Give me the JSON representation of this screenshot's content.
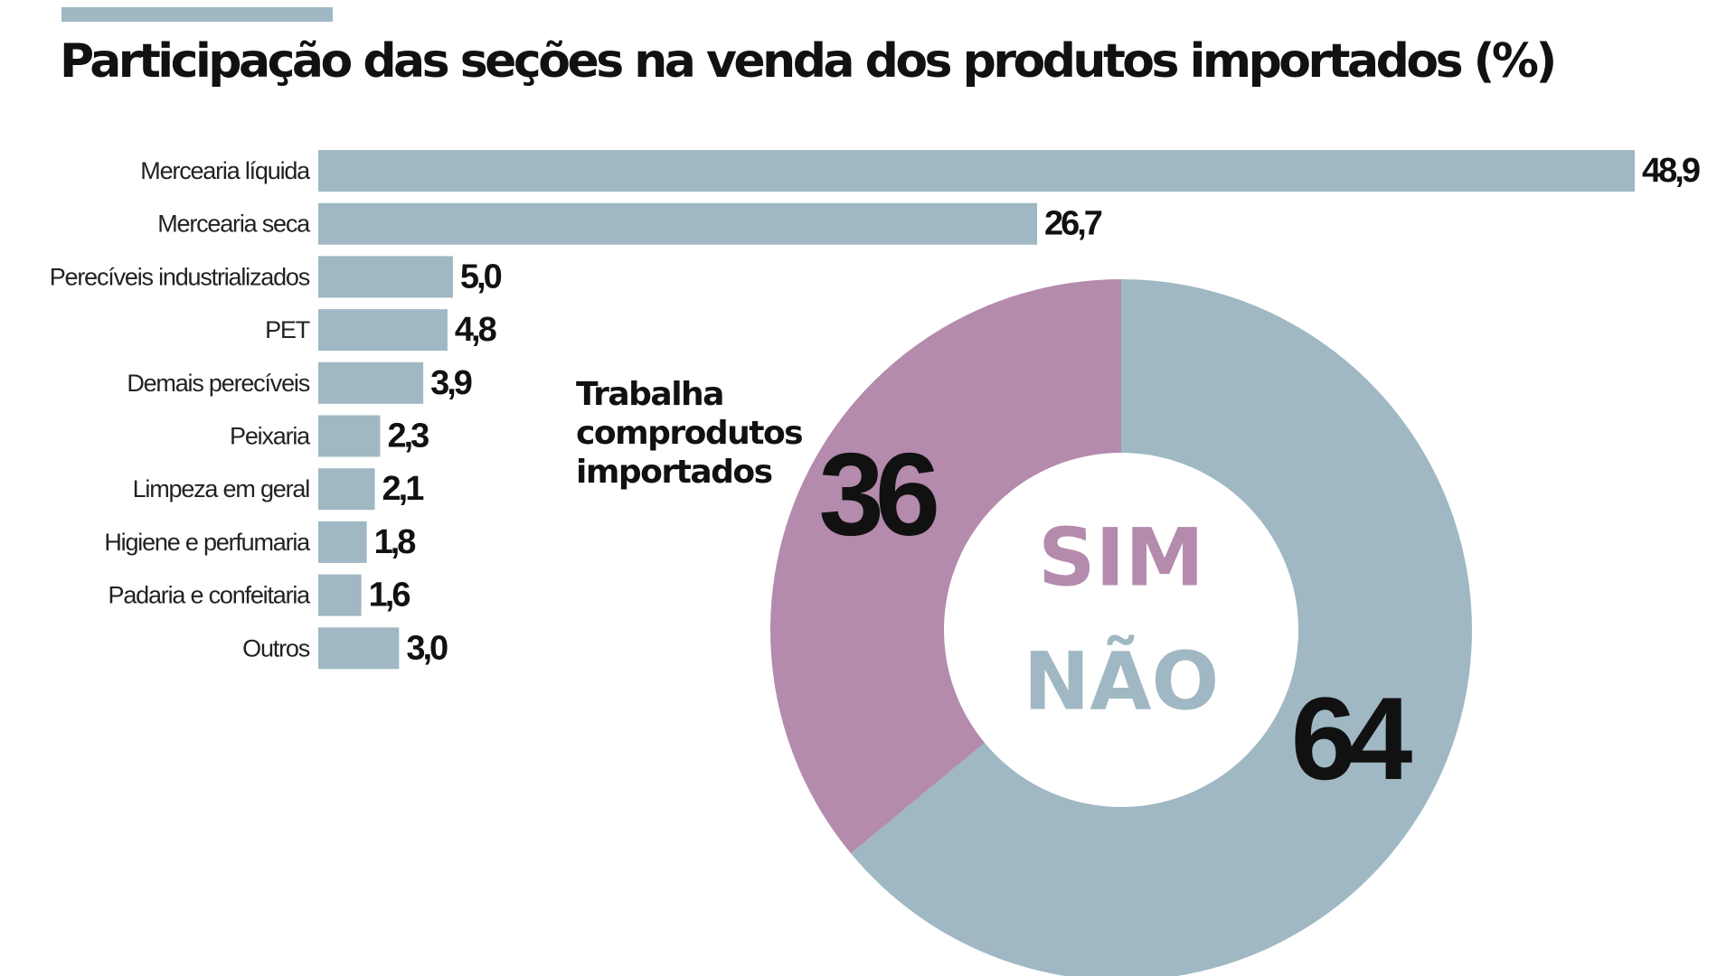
{
  "title": "Participação das seções na venda dos produtos importados (%)",
  "colors": {
    "bar": "#9fb8c3",
    "sim": "#b48aad",
    "nao": "#9fb8c3",
    "text": "#111111"
  },
  "chart_data": [
    {
      "type": "bar",
      "orientation": "horizontal",
      "title": "Participação das seções na venda dos produtos importados (%)",
      "categories": [
        "Mercearia líquida",
        "Mercearia seca",
        "Perecíveis industrializados",
        "PET",
        "Demais perecíveis",
        "Peixaria",
        "Limpeza em geral",
        "Higiene e perfumaria",
        "Padaria e confeitaria",
        "Outros"
      ],
      "values": [
        48.9,
        26.7,
        5.0,
        4.8,
        3.9,
        2.3,
        2.1,
        1.8,
        1.6,
        3.0
      ],
      "value_labels": [
        "48,9",
        "26,7",
        "5,0",
        "4,8",
        "3,9",
        "2,3",
        "2,1",
        "1,8",
        "1,6",
        "3,0"
      ],
      "xlim": [
        0,
        48.9
      ],
      "grid": false
    },
    {
      "type": "pie",
      "style": "donut",
      "title": "Trabalha comprodutos importados",
      "title_lines": [
        "Trabalha",
        "comprodutos",
        "importados"
      ],
      "slices": [
        {
          "name": "SIM",
          "value": 36,
          "label": "36",
          "color": "#b48aad"
        },
        {
          "name": "NÃO",
          "value": 64,
          "label": "64",
          "color": "#9fb8c3"
        }
      ]
    }
  ]
}
